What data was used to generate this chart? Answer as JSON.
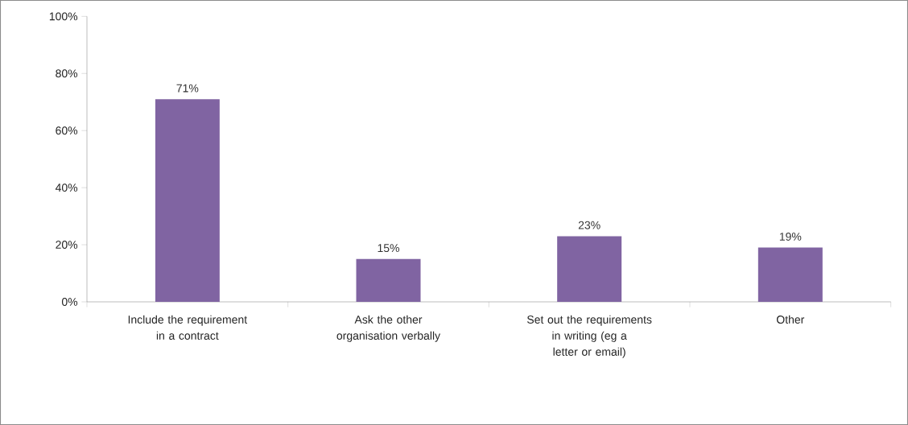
{
  "chart_data": {
    "type": "bar",
    "categories": [
      "Include the requirement in a contract",
      "Ask the other organisation verbally",
      "Set out the requirements in writing (eg a letter or email)",
      "Other"
    ],
    "values": [
      71,
      15,
      23,
      19
    ],
    "value_labels": [
      "71%",
      "15%",
      "23%",
      "19%"
    ],
    "color": "#8064a2",
    "ylim": [
      0,
      100
    ],
    "yticks": [
      {
        "value": 0,
        "label": "0%"
      },
      {
        "value": 20,
        "label": "20%"
      },
      {
        "value": 40,
        "label": "40%"
      },
      {
        "value": 60,
        "label": "60%"
      },
      {
        "value": 80,
        "label": "80%"
      },
      {
        "value": 100,
        "label": "100%"
      }
    ],
    "grid": false
  }
}
